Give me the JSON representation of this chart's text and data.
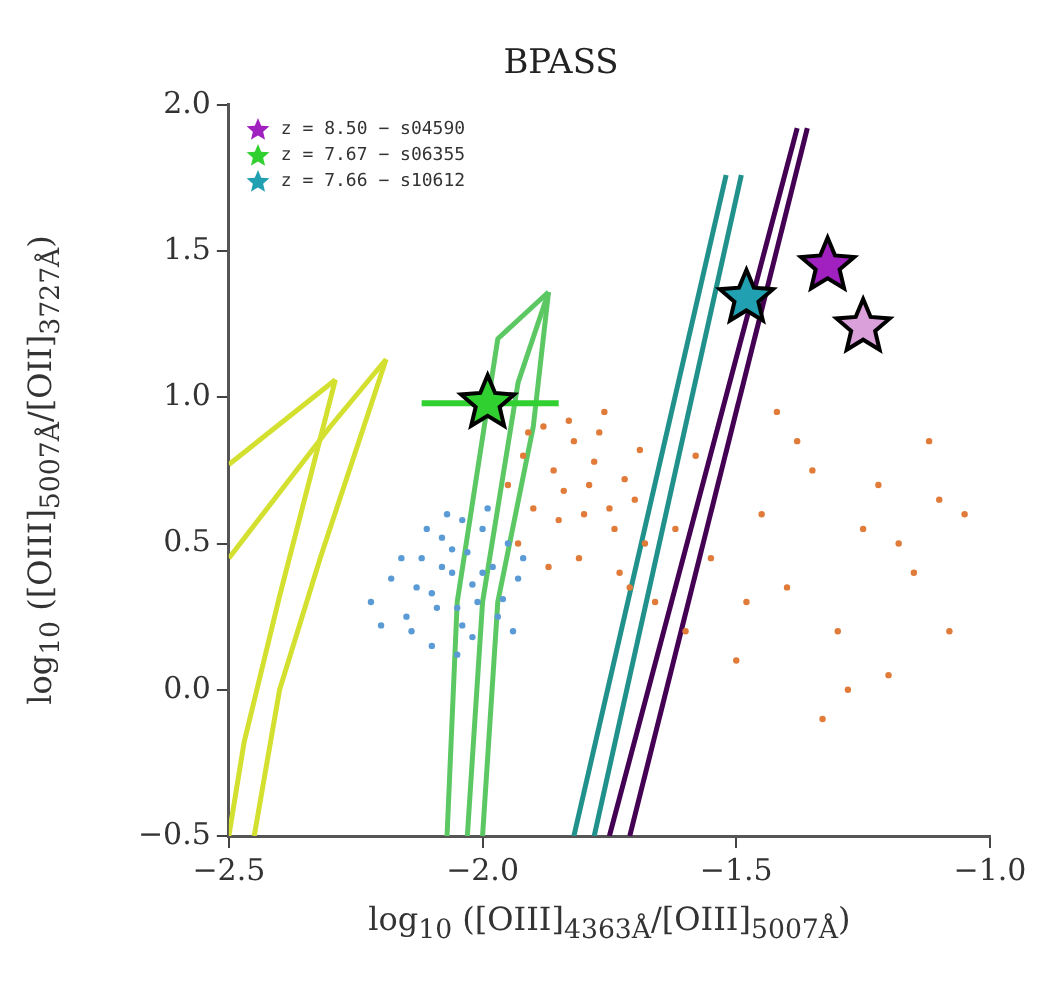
{
  "chart_data": {
    "type": "scatter",
    "title": "BPASS",
    "xlabel": "log$_{10}$ ([OIII]$_{4363Å}$/[OIII]$_{5007Å}$)",
    "ylabel": "log$_{10}$ ([OIII]$_{5007Å}$/[OII]$_{3727Å}$)",
    "xlim": [
      -2.5,
      -1.0
    ],
    "ylim": [
      -0.5,
      2.0
    ],
    "xticks": [
      {
        "value": -2.5,
        "label": "−2.5"
      },
      {
        "value": -2.0,
        "label": "−2.0"
      },
      {
        "value": -1.5,
        "label": "−1.5"
      },
      {
        "value": -1.0,
        "label": "−1.0"
      }
    ],
    "yticks": [
      {
        "value": -0.5,
        "label": "−0.5"
      },
      {
        "value": 0,
        "label": "0.0"
      },
      {
        "value": 0.5,
        "label": "0.5"
      },
      {
        "value": 1.0,
        "label": "1.0"
      },
      {
        "value": 1.5,
        "label": "1.5"
      },
      {
        "value": 2.0,
        "label": "2.0"
      }
    ],
    "grid": false,
    "legend": "top left",
    "series": [
      {
        "type": "line",
        "marker": "none",
        "color": "#d4e030",
        "x": [
          -2.5,
          -2.29
        ],
        "values": [
          0.77,
          1.06
        ]
      },
      {
        "type": "line",
        "marker": "none",
        "color": "#d4e030",
        "x": [
          -2.5,
          -2.47,
          -2.4,
          -2.29
        ],
        "values": [
          -0.5,
          -0.18,
          0.32,
          1.06
        ]
      },
      {
        "type": "line",
        "marker": "none",
        "color": "#d4e030",
        "x": [
          -2.45,
          -2.4,
          -2.32,
          -2.19
        ],
        "values": [
          -0.5,
          0.0,
          0.45,
          1.13
        ]
      },
      {
        "type": "line",
        "marker": "none",
        "color": "#d4e030",
        "x": [
          -2.5,
          -2.3,
          -2.19
        ],
        "values": [
          0.45,
          0.9,
          1.13
        ]
      },
      {
        "type": "line",
        "marker": "none",
        "color": "#5cc863",
        "x": [
          -2.07,
          -2.05,
          -1.97,
          -1.87
        ],
        "values": [
          -0.5,
          0.3,
          1.2,
          1.36
        ]
      },
      {
        "type": "line",
        "marker": "none",
        "color": "#5cc863",
        "x": [
          -2.0,
          -1.97,
          -1.9,
          -1.87
        ],
        "values": [
          -0.5,
          0.3,
          0.9,
          1.36
        ]
      },
      {
        "type": "line",
        "marker": "none",
        "color": "#5cc863",
        "x": [
          -2.03,
          -2.0,
          -1.93,
          -1.87
        ],
        "values": [
          -0.5,
          0.3,
          1.05,
          1.36
        ]
      },
      {
        "type": "line",
        "marker": "none",
        "color": "#21918c",
        "x": [
          -1.82,
          -1.52
        ],
        "values": [
          -0.5,
          1.76
        ]
      },
      {
        "type": "line",
        "marker": "none",
        "color": "#21918c",
        "x": [
          -1.78,
          -1.49
        ],
        "values": [
          -0.5,
          1.76
        ]
      },
      {
        "type": "line",
        "marker": "none",
        "color": "#440154",
        "x": [
          -1.75,
          -1.38
        ],
        "values": [
          -0.5,
          1.92
        ]
      },
      {
        "type": "line",
        "marker": "none",
        "color": "#440154",
        "x": [
          -1.71,
          -1.36
        ],
        "values": [
          -0.5,
          1.92
        ]
      },
      {
        "marker": "circle",
        "color": "#5b9bd5",
        "x": [
          -2.22,
          -2.18,
          -2.15,
          -2.12,
          -2.1,
          -2.08,
          -2.06,
          -2.05,
          -2.03,
          -2.02,
          -2.0,
          -1.98,
          -1.96,
          -1.95,
          -1.93,
          -2.14,
          -2.1,
          -2.07,
          -2.04,
          -2.01,
          -1.99,
          -2.16,
          -2.11,
          -2.06,
          -2.02,
          -1.97,
          -1.92,
          -2.2,
          -2.13,
          -2.08,
          -2.04,
          -2.0,
          -1.94,
          -2.09,
          -2.05
        ],
        "values": [
          0.3,
          0.38,
          0.25,
          0.45,
          0.33,
          0.52,
          0.4,
          0.28,
          0.47,
          0.36,
          0.55,
          0.42,
          0.31,
          0.5,
          0.38,
          0.2,
          0.15,
          0.6,
          0.22,
          0.3,
          0.62,
          0.45,
          0.55,
          0.48,
          0.18,
          0.25,
          0.45,
          0.22,
          0.35,
          0.42,
          0.58,
          0.4,
          0.2,
          0.28,
          0.12
        ]
      },
      {
        "marker": "circle",
        "color": "#e07b39",
        "x": [
          -1.95,
          -1.92,
          -1.9,
          -1.88,
          -1.86,
          -1.84,
          -1.82,
          -1.8,
          -1.78,
          -1.76,
          -1.74,
          -1.72,
          -1.7,
          -1.68,
          -1.93,
          -1.89,
          -1.85,
          -1.81,
          -1.77,
          -1.73,
          -1.69,
          -1.91,
          -1.87,
          -1.83,
          -1.79,
          -1.75,
          -1.71,
          -1.66,
          -1.62,
          -1.6,
          -1.55,
          -1.5,
          -1.45,
          -1.4,
          -1.35,
          -1.3,
          -1.25,
          -1.2,
          -1.15,
          -1.1,
          -1.05,
          -1.58,
          -1.48,
          -1.38,
          -1.28,
          -1.18,
          -1.08,
          -1.42,
          -1.33,
          -1.22,
          -1.12
        ],
        "values": [
          0.7,
          0.8,
          0.62,
          0.9,
          0.75,
          0.68,
          0.85,
          0.6,
          0.78,
          0.95,
          0.55,
          0.72,
          0.65,
          0.5,
          0.5,
          null,
          0.58,
          0.45,
          0.88,
          0.4,
          0.82,
          0.88,
          0.42,
          0.92,
          0.7,
          0.62,
          0.35,
          0.3,
          0.55,
          0.2,
          0.45,
          0.1,
          0.6,
          0.35,
          0.75,
          0.2,
          0.55,
          0.05,
          0.4,
          0.65,
          0.6,
          0.8,
          0.3,
          0.85,
          0.0,
          0.5,
          0.2,
          0.95,
          -0.1,
          0.7,
          0.85
        ]
      },
      {
        "marker": "star",
        "color": "#d9a0d9",
        "x": [
          -1.25
        ],
        "values": [
          1.24
        ]
      },
      {
        "name": "z = 8.50 − s04590",
        "marker": "star",
        "color": "#a020c0",
        "x": [
          -1.32
        ],
        "values": [
          1.45
        ]
      },
      {
        "name": "z = 7.67 − s06355",
        "marker": "star",
        "color": "#30d030",
        "x": [
          -1.99
        ],
        "values": [
          0.98
        ],
        "xerrors": [
          [
            -2.12,
            -1.85
          ]
        ]
      },
      {
        "name": "z = 7.66 − s10612",
        "marker": "star",
        "color": "#20a0b0",
        "x": [
          -1.48
        ],
        "values": [
          1.34
        ]
      }
    ]
  }
}
